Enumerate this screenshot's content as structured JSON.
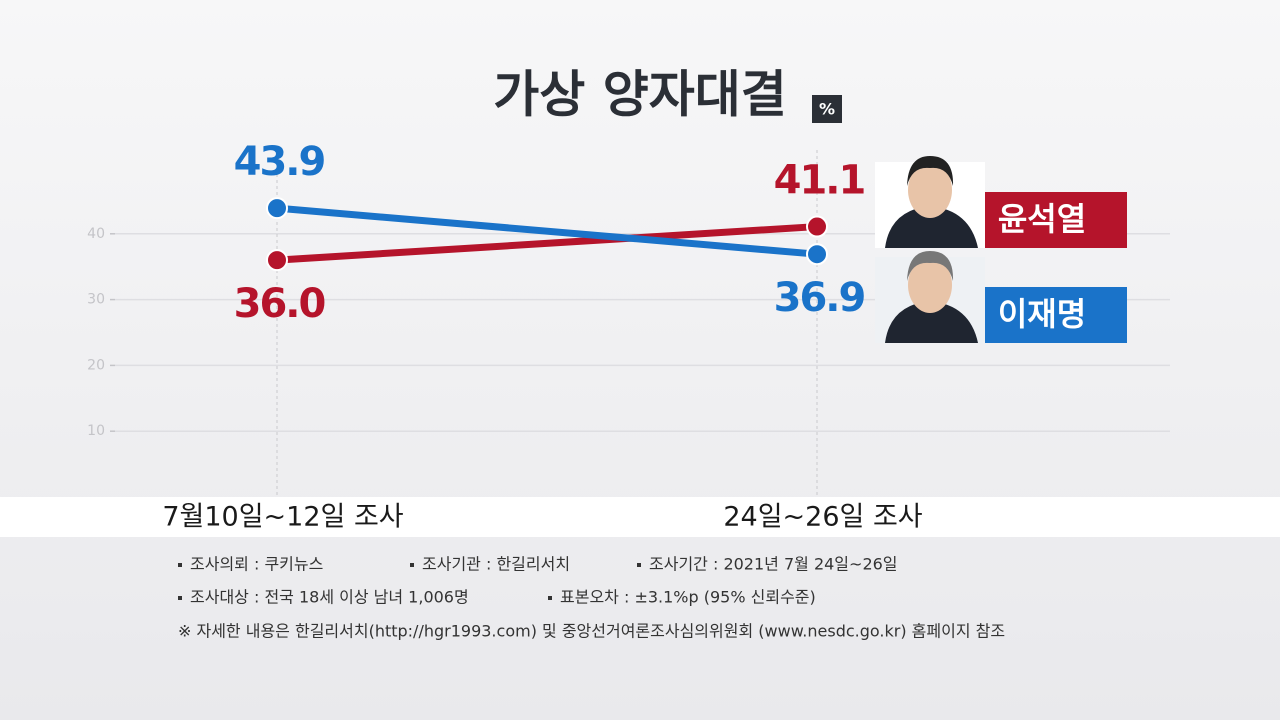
{
  "chart_data": {
    "type": "line",
    "title": "가상 양자대결",
    "unit": "%",
    "categories": [
      "7월10일~12일 조사",
      "24일~26일 조사"
    ],
    "series": [
      {
        "name": "윤석열",
        "color": "#b5142b",
        "values": [
          36.0,
          41.1
        ],
        "value_labels": [
          "36.0",
          "41.1"
        ]
      },
      {
        "name": "이재명",
        "color": "#1a73c9",
        "values": [
          43.9,
          36.9
        ],
        "value_labels": [
          "43.9",
          "36.9"
        ]
      }
    ],
    "ylim": [
      0,
      50
    ],
    "yticks": [
      10,
      20,
      30,
      40
    ],
    "grid": true
  },
  "notes": [
    [
      "조사의뢰 : 쿠키뉴스",
      "조사기관 : 한길리서치",
      "조사기간 : 2021년 7월 24일~26일"
    ],
    [
      "조사대상 : 전국 18세 이상 남녀 1,006명",
      "표본오차 : ±3.1%p (95% 신뢰수준)"
    ],
    [
      "※ 자세한 내용은 한길리서치(http://hgr1993.com) 및 중앙선거여론조사심의위원회 (www.nesdc.go.kr) 홈페이지 참조"
    ]
  ]
}
